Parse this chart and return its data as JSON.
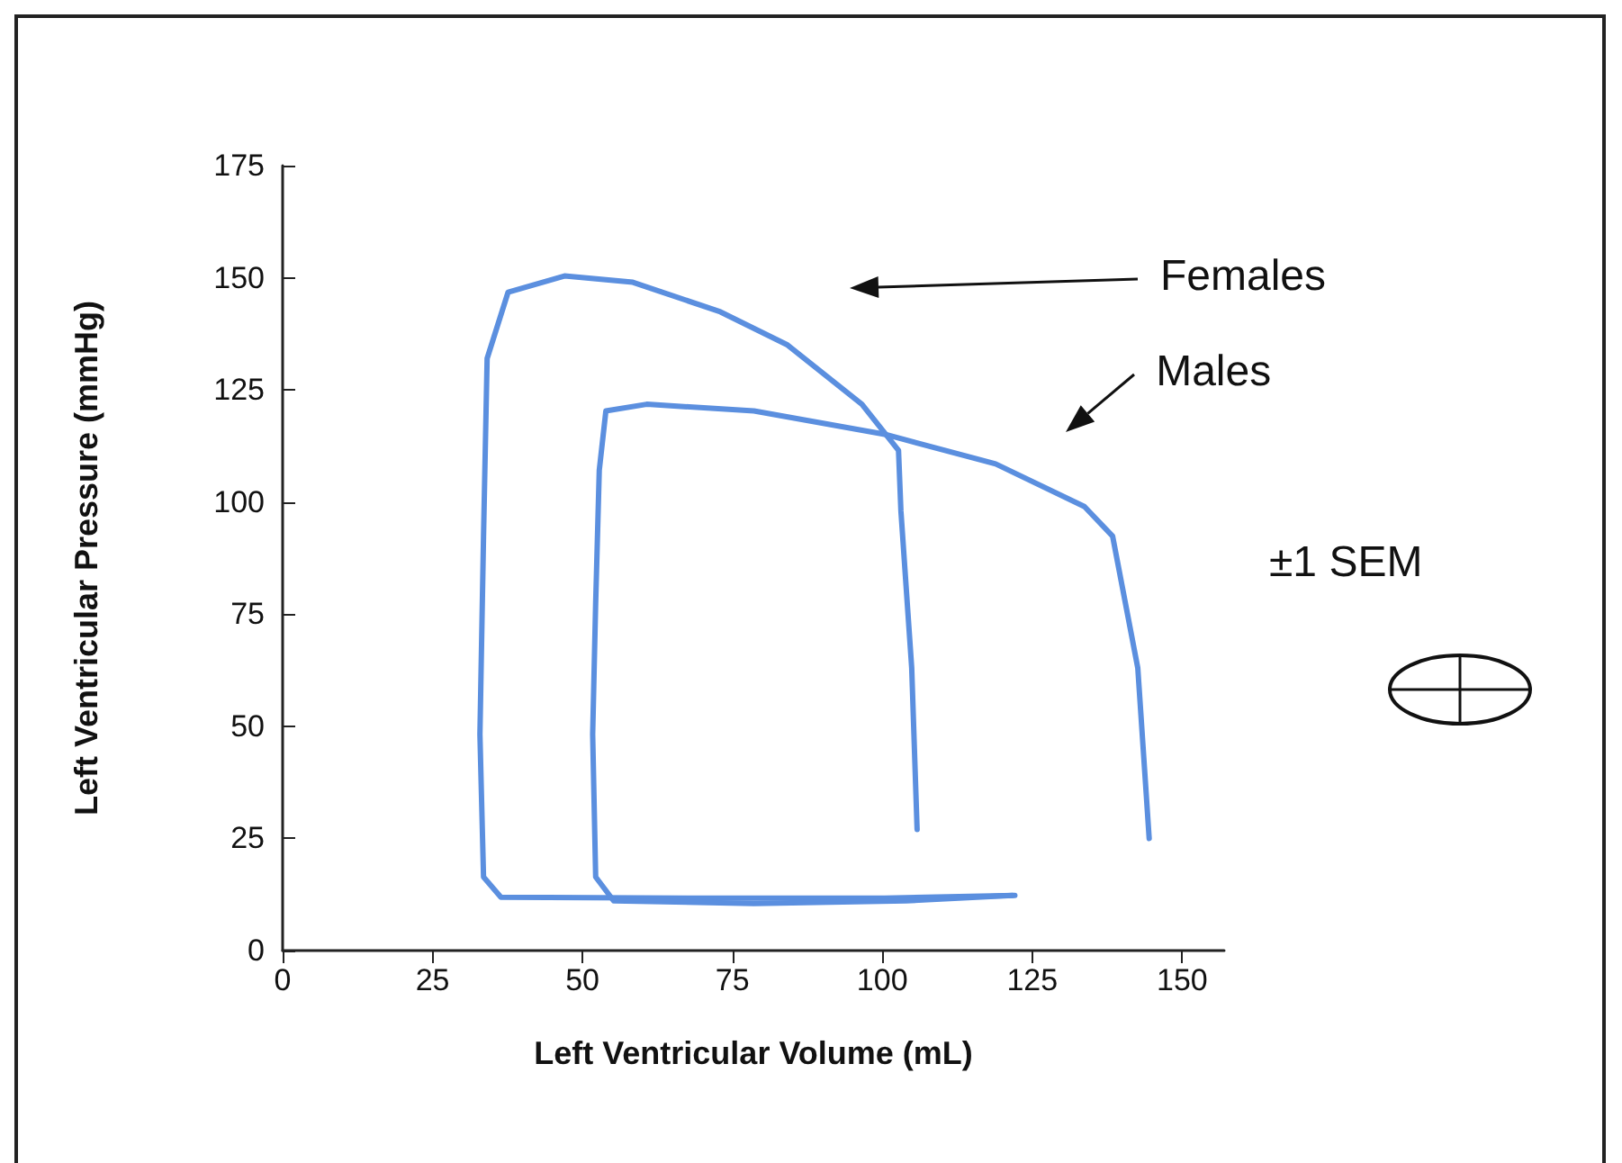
{
  "chart_data": {
    "type": "line",
    "xlabel": "Left Ventricular Volume (mL)",
    "ylabel": "Left Ventricular Pressure (mmHg)",
    "xlim": [
      0,
      157
    ],
    "xticks": [
      0,
      25,
      50,
      75,
      100,
      125,
      150
    ],
    "ylim": [
      0,
      175
    ],
    "yticks": [
      0,
      25,
      50,
      75,
      100,
      125,
      150,
      175
    ],
    "grid": false,
    "legend": false,
    "marker": "none",
    "line_style": "solid",
    "series": [
      {
        "name": "Females",
        "color": "#5b8fdf",
        "x": [
          105.8,
          104.9,
          103.1,
          102.7,
          96.6,
          84.2,
          73,
          58.4,
          47,
          37.6,
          34.1,
          33.5,
          32.9,
          33.5,
          36.4,
          67.4,
          100.4,
          122.1
        ],
        "values": [
          27,
          63,
          98,
          111.5,
          121.8,
          135,
          142.4,
          149,
          150.4,
          146.8,
          132,
          92.4,
          48.2,
          16.4,
          11.9,
          11.7,
          11.7,
          12.3
        ]
      },
      {
        "name": "Males",
        "color": "#5b8fdf",
        "x": [
          144.5,
          142.6,
          138.4,
          133.7,
          118.9,
          100.4,
          78.6,
          60.7,
          53.9,
          52.8,
          52.2,
          51.7,
          52.2,
          55.2,
          78.6,
          104,
          121.7
        ],
        "values": [
          25,
          63,
          92.4,
          99,
          108.5,
          115.1,
          120.3,
          121.8,
          120.3,
          107.1,
          77.6,
          48.2,
          16.4,
          11.1,
          10.5,
          11.1,
          12.3
        ]
      }
    ],
    "annotations": [
      "±1 SEM"
    ]
  }
}
